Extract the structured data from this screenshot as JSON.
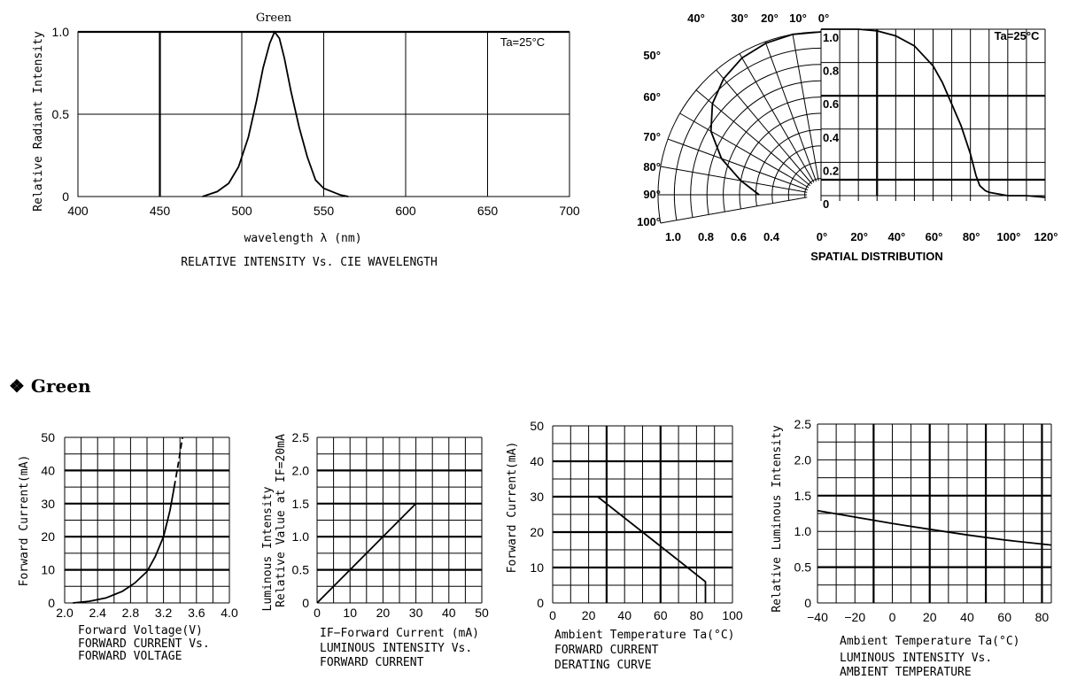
{
  "section": {
    "bullet": "❖",
    "title": "Green"
  },
  "chart_data": [
    {
      "type": "line",
      "title": "Green",
      "caption": "RELATIVE INTENSITY Vs. CIE WAVELENGTH",
      "xlabel": "wavelength λ (nm)",
      "ylabel": "Relative Radiant Intensity",
      "annotation": "Ta=25°C",
      "xlim": [
        400,
        700
      ],
      "ylim": [
        0,
        1.0
      ],
      "x_ticks": [
        "400",
        "450",
        "500",
        "550",
        "600",
        "650",
        "700"
      ],
      "y_ticks": [
        "0",
        "0.5",
        "1.0"
      ],
      "series": [
        {
          "x": [
            476,
            485,
            492,
            498,
            504,
            509,
            513,
            517,
            520,
            523,
            526,
            530,
            535,
            540,
            545,
            550,
            555,
            560,
            565
          ],
          "y": [
            0.0,
            0.03,
            0.08,
            0.18,
            0.36,
            0.58,
            0.78,
            0.93,
            1.0,
            0.96,
            0.84,
            0.64,
            0.42,
            0.24,
            0.1,
            0.05,
            0.03,
            0.01,
            0.0
          ]
        }
      ]
    },
    {
      "type": "line",
      "caption": "SPATIAL DISTRIBUTION",
      "annotation": "Ta=25°C",
      "polar_angle_labels": [
        "40°",
        "30°",
        "20°",
        "10°",
        "0°",
        "50°",
        "60°",
        "70°",
        "80°",
        "90°",
        "100°"
      ],
      "polar_radius_labels": [
        "1.0",
        "0.8",
        "0.6",
        "0.4"
      ],
      "inner_value_labels": [
        "1.0",
        "0.8",
        "0.6",
        "0.4",
        "0.2",
        "0"
      ],
      "x_ticks": [
        "0°",
        "20°",
        "40°",
        "60°",
        "80°",
        "100°",
        "120°"
      ],
      "xlim": [
        0,
        120
      ],
      "ylim": [
        0,
        1.0
      ],
      "series": [
        {
          "x": [
            0,
            10,
            20,
            30,
            40,
            50,
            60,
            65,
            70,
            75,
            80,
            83,
            85,
            88,
            90,
            95,
            100,
            110,
            120
          ],
          "y": [
            1.0,
            1.0,
            1.0,
            0.99,
            0.96,
            0.9,
            0.78,
            0.68,
            0.55,
            0.42,
            0.25,
            0.12,
            0.06,
            0.03,
            0.02,
            0.01,
            0.0,
            0.0,
            -0.01
          ]
        }
      ],
      "polar_series": [
        {
          "angle": [
            0,
            10,
            20,
            30,
            40,
            50,
            60,
            70,
            80,
            85,
            90
          ],
          "r": [
            1.0,
            1.0,
            0.99,
            0.97,
            0.93,
            0.87,
            0.78,
            0.65,
            0.5,
            0.43,
            0.38
          ]
        }
      ]
    },
    {
      "type": "line",
      "xlabel": "Forward Voltage(V)",
      "ylabel": "Forward Current(mA)",
      "caption": [
        "FORWARD CURRENT Vs.",
        "FORWARD VOLTAGE"
      ],
      "xlim": [
        2.0,
        4.0
      ],
      "ylim": [
        0,
        50
      ],
      "x_ticks": [
        "2.0",
        "2.4",
        "2.8",
        "3.2",
        "3.6",
        "4.0"
      ],
      "y_ticks": [
        "0",
        "10",
        "20",
        "30",
        "40",
        "50"
      ],
      "series": [
        {
          "x": [
            2.1,
            2.3,
            2.5,
            2.7,
            2.85,
            3.0,
            3.1,
            3.2,
            3.28,
            3.33
          ],
          "y": [
            0,
            0.5,
            1.5,
            3.5,
            6,
            9.5,
            14,
            20,
            28,
            35
          ],
          "style": "solid"
        },
        {
          "x": [
            3.33,
            3.38,
            3.43
          ],
          "y": [
            35,
            42,
            50
          ],
          "style": "dashed"
        }
      ]
    },
    {
      "type": "line",
      "xlabel": "IF−Forward Current (mA)",
      "ylabel": [
        "Luminous Intensity",
        "Relative Value at IF=20mA"
      ],
      "caption": [
        "LUMINOUS INTENSITY Vs.",
        "FORWARD CURRENT"
      ],
      "xlim": [
        0,
        50
      ],
      "ylim": [
        0,
        2.5
      ],
      "x_ticks": [
        "0",
        "10",
        "20",
        "30",
        "40",
        "50"
      ],
      "y_ticks": [
        "0",
        "0.5",
        "1.0",
        "1.5",
        "2.0",
        "2.5"
      ],
      "series": [
        {
          "x": [
            0,
            30
          ],
          "y": [
            0,
            1.5
          ]
        }
      ]
    },
    {
      "type": "line",
      "xlabel": "Ambient Temperature Ta(°C)",
      "ylabel": "Forward Current(mA)",
      "caption": [
        "FORWARD CURRENT",
        "DERATING CURVE"
      ],
      "xlim": [
        0,
        100
      ],
      "ylim": [
        0,
        50
      ],
      "x_ticks": [
        "0",
        "20",
        "40",
        "60",
        "80",
        "100"
      ],
      "y_ticks": [
        "0",
        "10",
        "20",
        "30",
        "40",
        "50"
      ],
      "series": [
        {
          "x": [
            0,
            25,
            85,
            85
          ],
          "y": [
            30,
            30,
            6,
            0
          ]
        }
      ]
    },
    {
      "type": "line",
      "xlabel": "Ambient Temperature Ta(°C)",
      "ylabel": "Relative Luminous Intensity",
      "caption": [
        "LUMINOUS INTENSITY Vs.",
        "AMBIENT TEMPERATURE"
      ],
      "xlim": [
        -40,
        85
      ],
      "ylim": [
        0,
        2.5
      ],
      "x_ticks": [
        "−40",
        "−20",
        "0",
        "20",
        "40",
        "60",
        "80"
      ],
      "y_ticks": [
        "0",
        "0.5",
        "1.0",
        "1.5",
        "2.0",
        "2.5"
      ],
      "series": [
        {
          "x": [
            -40,
            -20,
            0,
            20,
            40,
            60,
            85
          ],
          "y": [
            1.29,
            1.2,
            1.11,
            1.03,
            0.95,
            0.88,
            0.81
          ]
        }
      ]
    }
  ]
}
